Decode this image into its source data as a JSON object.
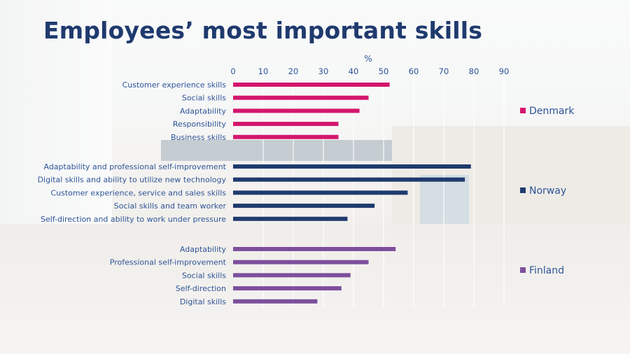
{
  "title": "Employees’ most important skills",
  "chart_data": {
    "type": "bar",
    "orientation": "horizontal",
    "xlabel": "%",
    "xlim": [
      0,
      90
    ],
    "xticks": [
      0,
      10,
      20,
      30,
      40,
      50,
      60,
      70,
      80,
      90
    ],
    "grid": true,
    "legend_position": "right",
    "groups": [
      {
        "name": "Denmark",
        "color": "#d4166e",
        "categories": [
          "Customer experience skills",
          "Social skills",
          "Adaptability",
          "Responsibility",
          "Business skills"
        ],
        "values": [
          52,
          45,
          42,
          35,
          35
        ]
      },
      {
        "name": "Norway",
        "color": "#1f3a6e",
        "categories": [
          "Adaptability and professional self-improvement",
          "Digital skills and ability to utilize new technology",
          "Customer experience, service and sales skills",
          "Social skills and team worker",
          "Self-direction and ability to work under pressure"
        ],
        "values": [
          79,
          77,
          58,
          47,
          38
        ]
      },
      {
        "name": "Finland",
        "color": "#7d4f9c",
        "categories": [
          "Adaptability",
          "Professional self-improvement",
          "Social skills",
          "Self-direction",
          "Digital skills"
        ],
        "values": [
          54,
          45,
          39,
          36,
          28
        ]
      }
    ]
  }
}
